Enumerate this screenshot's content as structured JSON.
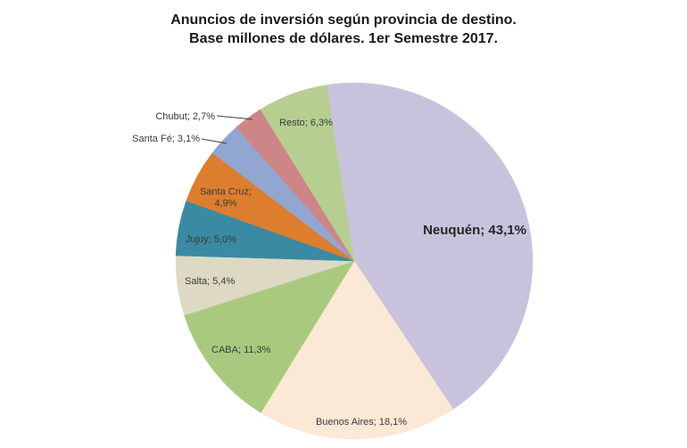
{
  "title": {
    "line1": "Anuncios de inversión según provincia de destino.",
    "line2": "Base millones de dólares. 1er Semestre 2017."
  },
  "chart_data": {
    "type": "pie",
    "title": "Anuncios de inversión según provincia de destino. Base millones de dólares. 1er Semestre 2017.",
    "unit": "%",
    "decimal_separator": ",",
    "direction": "clockwise",
    "start_angle_deg": -9,
    "legend": "none",
    "label_text_color": "#3a3a3a",
    "background_color": "#ffffff",
    "slices": [
      {
        "name": "Neuquén",
        "value": 43.1,
        "label": "Neuquén; 43,1%",
        "color": "#c9c2dc",
        "label_position": "inside",
        "emphasis": true
      },
      {
        "name": "Buenos Aires",
        "value": 18.1,
        "label": "Buenos Aires; 18,1%",
        "color": "#fbe8d5",
        "label_position": "inside"
      },
      {
        "name": "CABA",
        "value": 11.3,
        "label": "CABA; 11,3%",
        "color": "#a9ca7e",
        "label_position": "inside"
      },
      {
        "name": "Salta",
        "value": 5.4,
        "label": "Salta; 5,4%",
        "color": "#ddd9c3",
        "label_position": "inside"
      },
      {
        "name": "Jujuy",
        "value": 5.0,
        "label": "Jujuy; 5,0%",
        "color": "#398aa2",
        "label_position": "inside"
      },
      {
        "name": "Santa Cruz",
        "value": 4.9,
        "label": "Santa Cruz; 4,9%",
        "color": "#dd7e2e",
        "label_position": "inside"
      },
      {
        "name": "Santa Fé",
        "value": 3.1,
        "label": "Santa Fé; 3,1%",
        "color": "#91a7d2",
        "label_position": "outside-with-leader"
      },
      {
        "name": "Chubut",
        "value": 2.7,
        "label": "Chubut; 2,7%",
        "color": "#cd8588",
        "label_position": "outside-with-leader"
      },
      {
        "name": "Resto",
        "value": 6.3,
        "label": "Resto; 6,3%",
        "color": "#b6cf90",
        "label_position": "inside"
      }
    ]
  }
}
